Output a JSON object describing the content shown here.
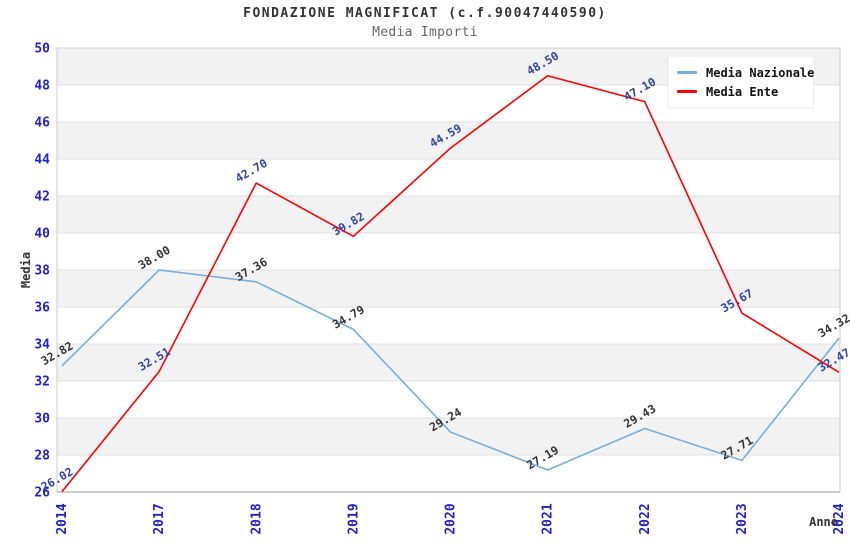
{
  "chart_data": {
    "type": "line",
    "title": "FONDAZIONE MAGNIFICAT (c.f.90047440590)",
    "subtitle": "Media Importi",
    "xlabel": "Anno",
    "ylabel": "Media",
    "categories": [
      "2014",
      "2017",
      "2018",
      "2019",
      "2020",
      "2021",
      "2022",
      "2023",
      "2024"
    ],
    "series": [
      {
        "name": "Media Nazionale",
        "color": "#76aede",
        "label_color": "#333333",
        "values": [
          32.82,
          38.0,
          37.36,
          34.79,
          29.24,
          27.19,
          29.43,
          27.71,
          34.32
        ]
      },
      {
        "name": "Media Ente",
        "color": "#ff0000",
        "label_color": "#3344a0",
        "values": [
          26.02,
          32.51,
          42.7,
          39.82,
          44.59,
          48.5,
          47.1,
          35.67,
          32.47
        ]
      }
    ],
    "ylim": [
      26,
      50
    ],
    "ytick_step": 2,
    "grid": "horizontal-bands",
    "legend_position": "top-right",
    "colors": {
      "tick_label": "#2020cc",
      "band": "#f2f2f2",
      "grid_line": "#e0e0e0",
      "plot_border": "#cccccc",
      "bottom_axis": "#999999",
      "title": "#333333",
      "subtitle": "#666666",
      "axis_title": "#333333"
    }
  }
}
